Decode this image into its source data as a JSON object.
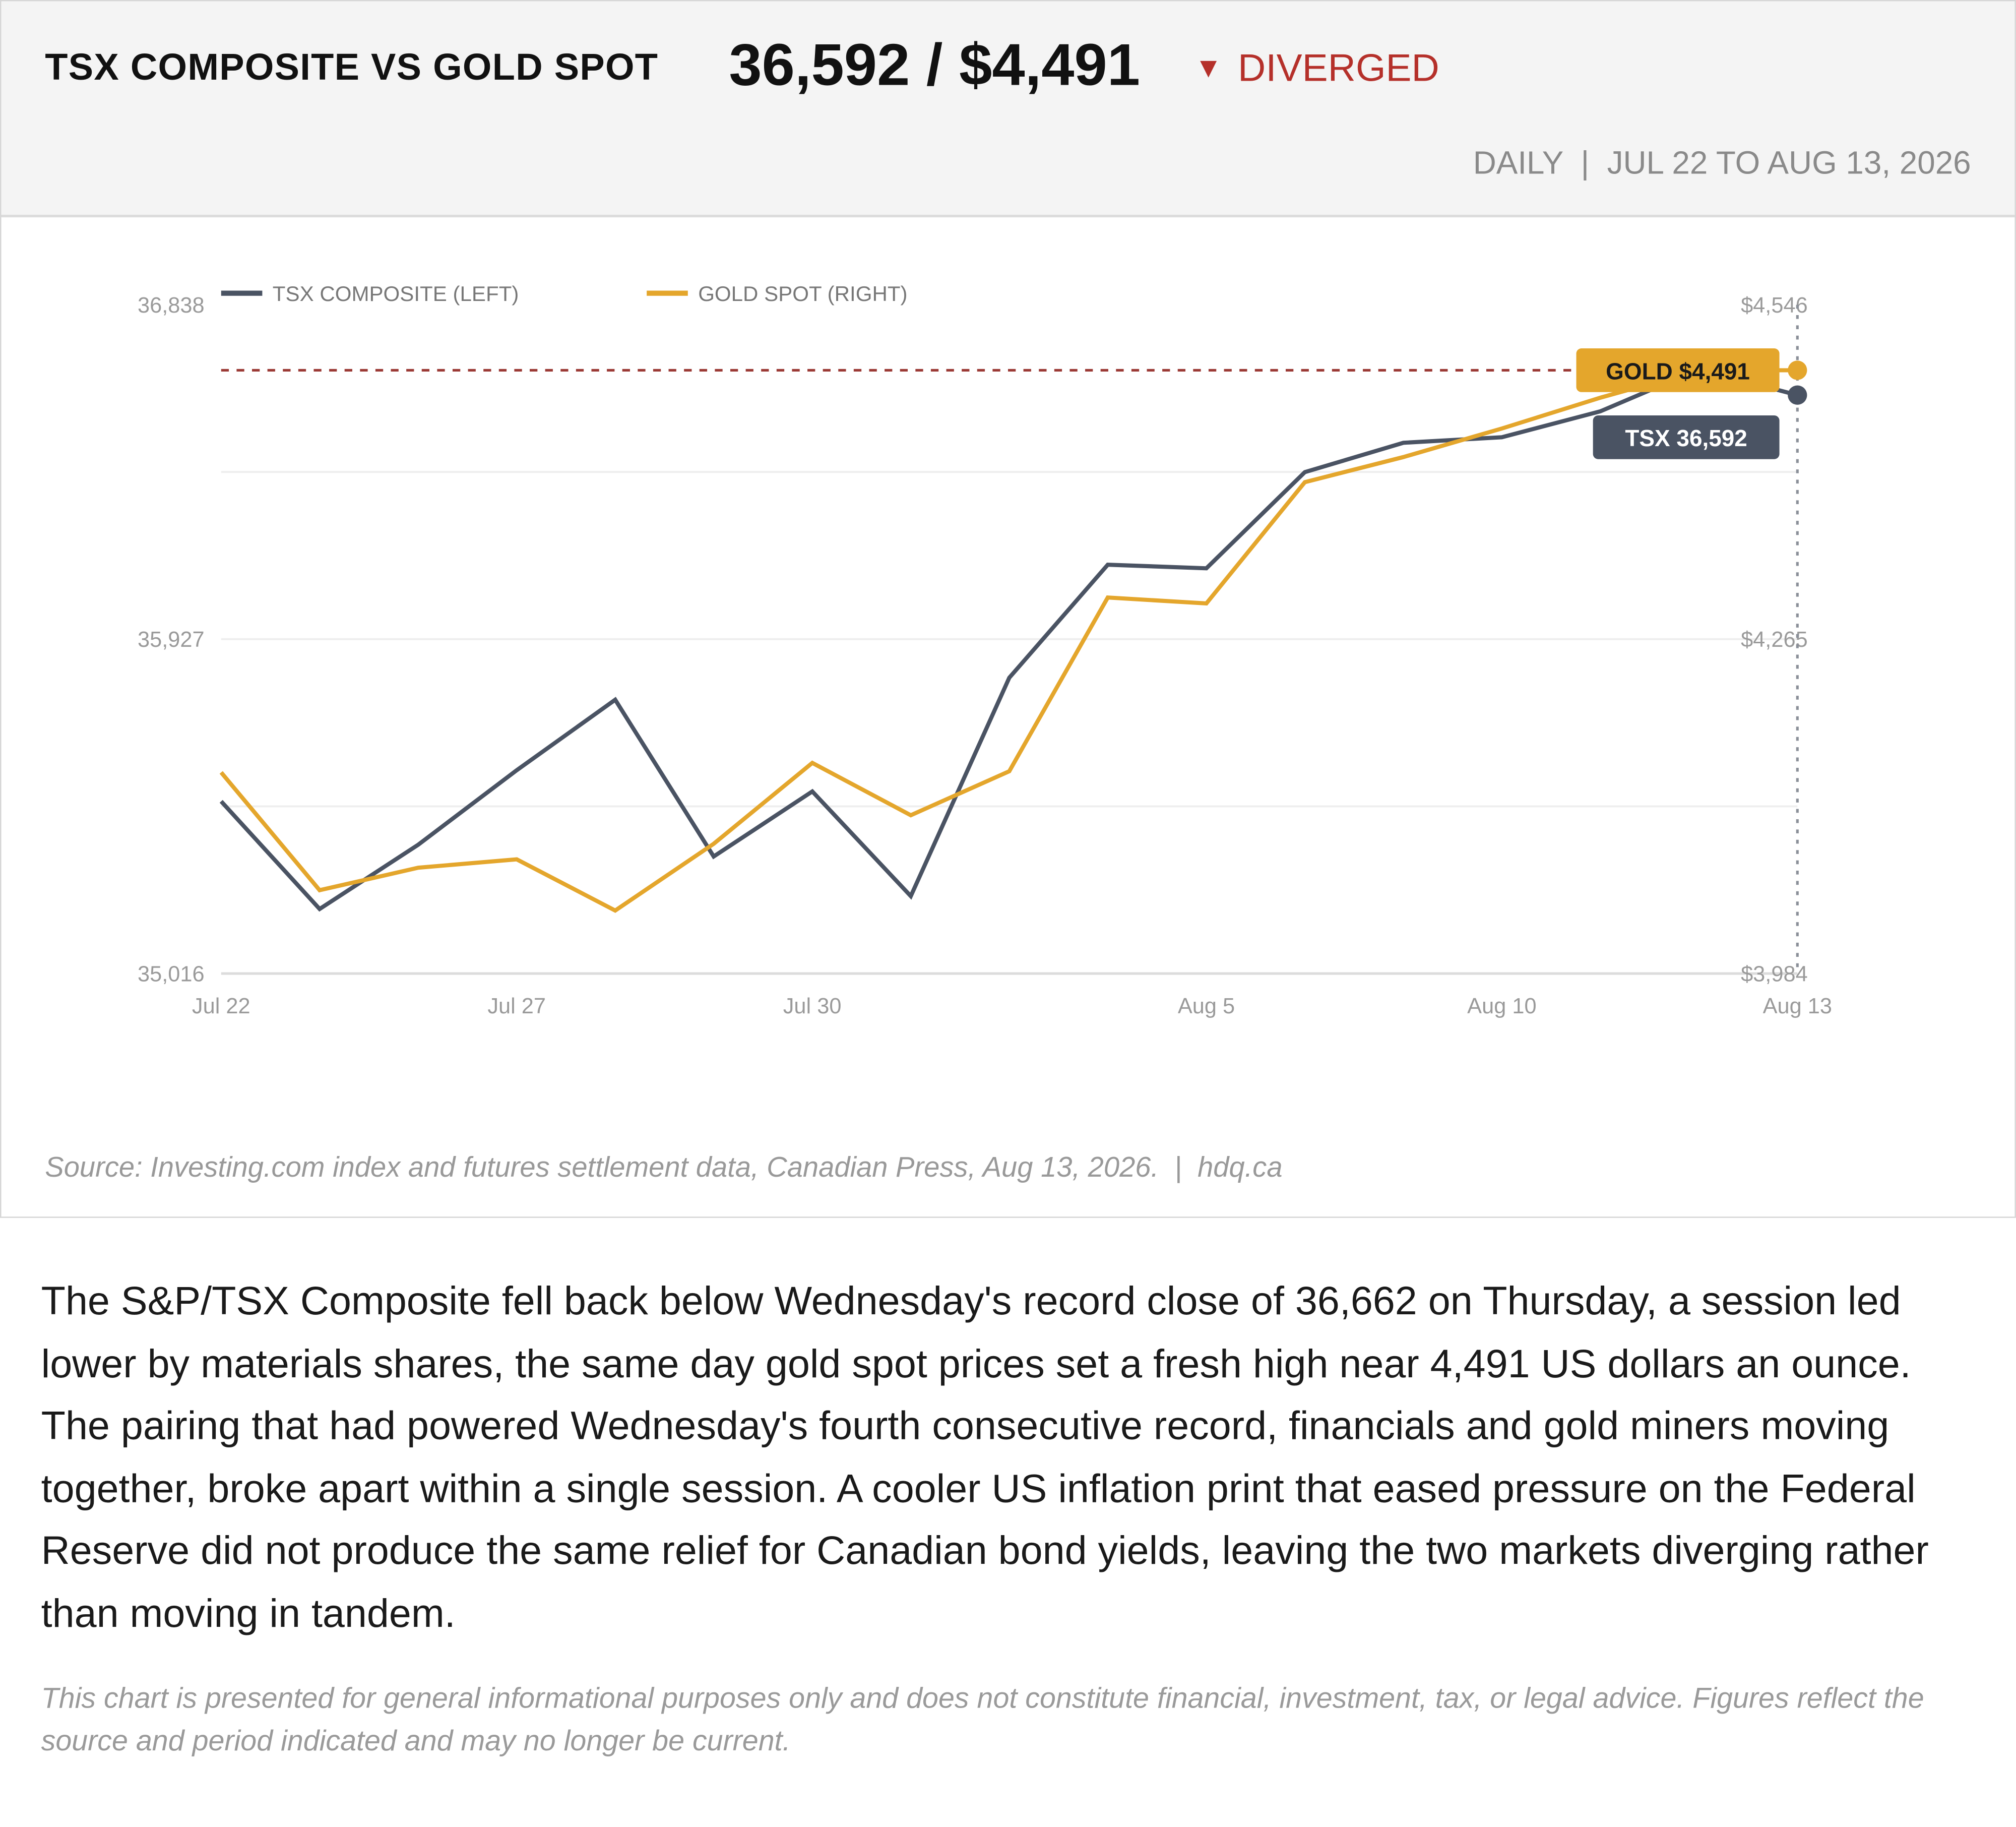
{
  "header": {
    "title": "TSX COMPOSITE VS GOLD SPOT",
    "headline_value": "36,592 / $4,491",
    "status_icon": "down-triangle-icon",
    "status_glyph": "▼",
    "status_label": "DIVERGED",
    "period": "DAILY  |  JUL 22 TO AUG 13, 2026"
  },
  "colors": {
    "tsx": "#4a5363",
    "gold": "#e4a62c",
    "alert": "#b5302a",
    "grid": "#eeeeee",
    "axis_text": "#9a9a9a"
  },
  "chart_data": {
    "type": "line",
    "legend_position": "top-left",
    "grid": true,
    "x": [
      "Jul 22",
      "Jul 23",
      "Jul 24",
      "Jul 27",
      "Jul 28",
      "Jul 29",
      "Jul 30",
      "Jul 31",
      "Aug 3",
      "Aug 4",
      "Aug 5",
      "Aug 6",
      "Aug 7",
      "Aug 10",
      "Aug 11",
      "Aug 12",
      "Aug 13"
    ],
    "x_ticks": [
      "Jul 22",
      "Jul 27",
      "Jul 30",
      "Aug 5",
      "Aug 10",
      "Aug 13"
    ],
    "y_left": {
      "ticks": [
        "36,838",
        "35,927",
        "35,016"
      ],
      "lim": [
        35016,
        36838
      ]
    },
    "y_right": {
      "ticks": [
        "$4,546",
        "$4,265",
        "$3,984"
      ],
      "lim": [
        3984,
        4546
      ]
    },
    "series": [
      {
        "name": "TSX COMPOSITE (LEFT)",
        "axis": "left",
        "color": "#4a5363",
        "values": [
          35485,
          35192,
          35367,
          35570,
          35762,
          35335,
          35512,
          35227,
          35822,
          36130,
          36120,
          36382,
          36462,
          36477,
          36548,
          36662,
          36592
        ]
      },
      {
        "name": "GOLD SPOT (RIGHT)",
        "axis": "right",
        "color": "#e4a62c",
        "values": [
          4153,
          4054,
          4073,
          4080,
          4037,
          4093,
          4161,
          4117,
          4154,
          4300,
          4295,
          4397,
          4418,
          4442,
          4468,
          4491,
          4491
        ]
      }
    ],
    "reference_line": {
      "axis": "right",
      "value": 4491
    },
    "annotations": [
      {
        "label": "GOLD $4,491",
        "series": "GOLD SPOT (RIGHT)",
        "x": "Aug 13"
      },
      {
        "label": "TSX 36,592",
        "series": "TSX COMPOSITE (LEFT)",
        "x": "Aug 13"
      }
    ]
  },
  "source": "Source: Investing.com index and futures settlement data, Canadian Press, Aug 13, 2026.  |  hdq.ca",
  "body_text": "The S&P/TSX Composite fell back below Wednesday's record close of 36,662 on Thursday, a session led lower by materials shares, the same day gold spot prices set a fresh high near 4,491 US dollars an ounce. The pairing that had powered Wednesday's fourth consecutive record, financials and gold miners moving together, broke apart within a single session. A cooler US inflation print that eased pressure on the Federal Reserve did not produce the same relief for Canadian bond yields, leaving the two markets diverging rather than moving in tandem.",
  "disclaimer": "This chart is presented for general informational purposes only and does not constitute financial, investment, tax, or legal advice. Figures reflect the source and period indicated and may no longer be current."
}
